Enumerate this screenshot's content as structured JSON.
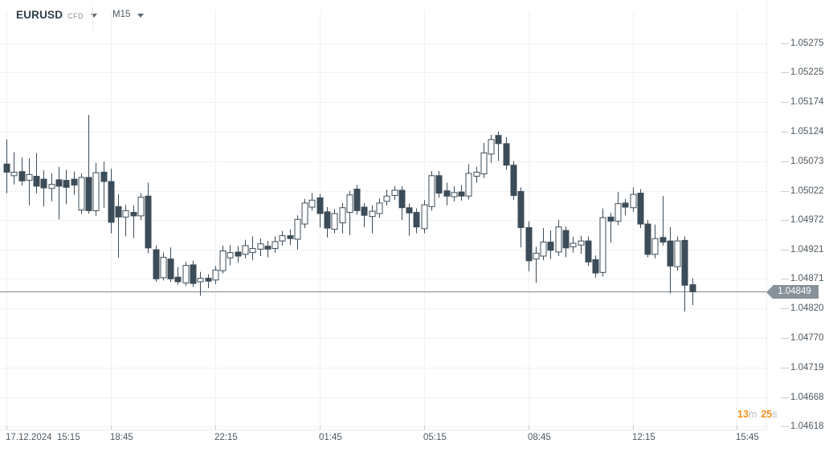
{
  "header": {
    "symbol": "EURUSD",
    "symbol_type": "CFD",
    "timeframe": "M15"
  },
  "price_scale": {
    "labels": [
      "1.05275",
      "1.05225",
      "1.05174",
      "1.05124",
      "1.05073",
      "1.05022",
      "1.04972",
      "1.04921",
      "1.04871",
      "1.04820",
      "1.04770",
      "1.04719",
      "1.04668",
      "1.04618"
    ],
    "current_price_label": "1.04849"
  },
  "time_scale": {
    "ticks": [
      {
        "label": "17.12.2024  15:15",
        "candle": 0
      },
      {
        "label": "18:45",
        "candle": 14
      },
      {
        "label": "22:15",
        "candle": 28
      },
      {
        "label": "01:45",
        "candle": 42
      },
      {
        "label": "05:15",
        "candle": 56
      },
      {
        "label": "08:45",
        "candle": 70
      },
      {
        "label": "12:15",
        "candle": 84
      },
      {
        "label": "15:45",
        "candle": 98
      }
    ]
  },
  "countdown": {
    "minutes_value": "13",
    "minutes_unit": "m",
    "seconds_value": "25",
    "seconds_unit": "s"
  },
  "colors": {
    "candle": "#3c4c59",
    "grid": "#eff1f3",
    "tick_dash": "#c7cdd1",
    "separator": "#e9eced",
    "price_line": "#7e8890",
    "badge_bg": "#87929a",
    "countdown_accent": "#f5931f"
  },
  "chart_data": {
    "type": "candlestick",
    "symbol": "EURUSD CFD",
    "interval": "M15",
    "start_time": "17.12.2024 15:15",
    "interval_minutes": 15,
    "current_price": 1.04849,
    "y_axis": {
      "ticks": [
        1.05275,
        1.05225,
        1.05174,
        1.05124,
        1.05073,
        1.05022,
        1.04972,
        1.04921,
        1.04871,
        1.0482,
        1.0477,
        1.04719,
        1.04668,
        1.04618
      ]
    },
    "candles": [
      [
        1.05068,
        1.0511,
        1.05018,
        1.05054
      ],
      [
        1.05048,
        1.05088,
        1.05033,
        1.05054
      ],
      [
        1.05055,
        1.05079,
        1.05031,
        1.05039
      ],
      [
        1.0504,
        1.05078,
        1.04997,
        1.0505
      ],
      [
        1.05047,
        1.05087,
        1.05018,
        1.0503
      ],
      [
        1.05042,
        1.05057,
        1.04995,
        1.05027
      ],
      [
        1.05026,
        1.05052,
        1.05004,
        1.05033
      ],
      [
        1.05041,
        1.05063,
        1.04973,
        1.0503
      ],
      [
        1.0504,
        1.05058,
        1.04999,
        1.05028
      ],
      [
        1.05042,
        1.05055,
        1.05015,
        1.05032
      ],
      [
        1.04989,
        1.05052,
        1.04982,
        1.05045
      ],
      [
        1.05045,
        1.05152,
        1.04983,
        1.04988
      ],
      [
        1.04988,
        1.0507,
        1.04979,
        1.05053
      ],
      [
        1.05054,
        1.05072,
        1.04993,
        1.05038
      ],
      [
        1.05038,
        1.0506,
        1.04949,
        1.04968
      ],
      [
        1.04995,
        1.05016,
        1.04907,
        1.04977
      ],
      [
        1.04977,
        1.04998,
        1.04944,
        1.04988
      ],
      [
        1.04985,
        1.04997,
        1.04941,
        1.04979
      ],
      [
        1.04979,
        1.05018,
        1.04972,
        1.05011
      ],
      [
        1.05013,
        1.05036,
        1.04915,
        1.04924
      ],
      [
        1.04921,
        1.04928,
        1.04866,
        1.04871
      ],
      [
        1.04873,
        1.04916,
        1.04868,
        1.04908
      ],
      [
        1.04905,
        1.04925,
        1.04866,
        1.04871
      ],
      [
        1.04874,
        1.04891,
        1.04861,
        1.04866
      ],
      [
        1.04864,
        1.049,
        1.04859,
        1.04894
      ],
      [
        1.04895,
        1.04902,
        1.04857,
        1.04863
      ],
      [
        1.04866,
        1.04883,
        1.04842,
        1.04872
      ],
      [
        1.04872,
        1.04879,
        1.04855,
        1.04867
      ],
      [
        1.04869,
        1.04893,
        1.04862,
        1.04886
      ],
      [
        1.04885,
        1.04928,
        1.0488,
        1.04919
      ],
      [
        1.04907,
        1.04929,
        1.04894,
        1.04916
      ],
      [
        1.04917,
        1.04927,
        1.04899,
        1.0491
      ],
      [
        1.04913,
        1.04938,
        1.04906,
        1.04928
      ],
      [
        1.04916,
        1.04944,
        1.04903,
        1.04923
      ],
      [
        1.04922,
        1.0494,
        1.0491,
        1.04931
      ],
      [
        1.04927,
        1.04936,
        1.04908,
        1.04922
      ],
      [
        1.04923,
        1.04944,
        1.04916,
        1.04935
      ],
      [
        1.04936,
        1.04953,
        1.04928,
        1.04945
      ],
      [
        1.04945,
        1.04956,
        1.04929,
        1.0494
      ],
      [
        1.04939,
        1.0498,
        1.04921,
        1.04973
      ],
      [
        1.04965,
        1.05008,
        1.04958,
        1.05001
      ],
      [
        1.04994,
        1.05018,
        1.04988,
        1.05006
      ],
      [
        1.0501,
        1.05017,
        1.04959,
        1.04983
      ],
      [
        1.04986,
        1.04994,
        1.04942,
        1.04958
      ],
      [
        1.04956,
        1.04991,
        1.04949,
        1.04983
      ],
      [
        1.04967,
        1.05001,
        1.04949,
        1.04993
      ],
      [
        1.04985,
        1.05022,
        1.04946,
        1.05015
      ],
      [
        1.05025,
        1.05032,
        1.04981,
        1.04988
      ],
      [
        1.04994,
        1.05001,
        1.0496,
        1.0498
      ],
      [
        1.04978,
        1.04997,
        1.04949,
        1.04987
      ],
      [
        1.04983,
        1.05009,
        1.04976,
        1.05001
      ],
      [
        1.05004,
        1.05024,
        1.04997,
        1.05013
      ],
      [
        1.05014,
        1.0503,
        1.05006,
        1.05023
      ],
      [
        1.05023,
        1.0503,
        1.04972,
        1.04993
      ],
      [
        1.04993,
        1.05,
        1.04945,
        1.04984
      ],
      [
        1.04985,
        1.04992,
        1.04949,
        1.0496
      ],
      [
        1.04957,
        1.05006,
        1.04949,
        1.04998
      ],
      [
        1.04995,
        1.05056,
        1.04988,
        1.05048
      ],
      [
        1.05048,
        1.05056,
        1.0501,
        1.05018
      ],
      [
        1.05022,
        1.05036,
        1.04997,
        1.05013
      ],
      [
        1.05012,
        1.0503,
        1.05004,
        1.05019
      ],
      [
        1.0502,
        1.05032,
        1.05005,
        1.05013
      ],
      [
        1.05013,
        1.05068,
        1.05007,
        1.05052
      ],
      [
        1.05047,
        1.05063,
        1.05036,
        1.05054
      ],
      [
        1.05051,
        1.05104,
        1.05044,
        1.05087
      ],
      [
        1.05085,
        1.05118,
        1.0507,
        1.0511
      ],
      [
        1.05117,
        1.05124,
        1.05073,
        1.05103
      ],
      [
        1.05103,
        1.05114,
        1.05058,
        1.05066
      ],
      [
        1.05066,
        1.05073,
        1.05006,
        1.05014
      ],
      [
        1.05021,
        1.05028,
        1.04925,
        1.04959
      ],
      [
        1.04959,
        1.0497,
        1.04884,
        1.04902
      ],
      [
        1.04905,
        1.04926,
        1.04864,
        1.04915
      ],
      [
        1.0491,
        1.04958,
        1.04903,
        1.04934
      ],
      [
        1.04934,
        1.04954,
        1.04905,
        1.0492
      ],
      [
        1.04917,
        1.04972,
        1.0491,
        1.0496
      ],
      [
        1.04954,
        1.04961,
        1.04908,
        1.04924
      ],
      [
        1.04926,
        1.04943,
        1.04916,
        1.04932
      ],
      [
        1.04929,
        1.04945,
        1.04914,
        1.04936
      ],
      [
        1.04936,
        1.04944,
        1.04893,
        1.049
      ],
      [
        1.04904,
        1.04911,
        1.04873,
        1.04881
      ],
      [
        1.04882,
        1.04992,
        1.04875,
        1.04976
      ],
      [
        1.04977,
        1.04984,
        1.04933,
        1.0497
      ],
      [
        1.0497,
        1.0502,
        1.04963,
        1.05
      ],
      [
        1.05001,
        1.05008,
        1.0498,
        1.04994
      ],
      [
        1.04993,
        1.05028,
        1.04986,
        1.05016
      ],
      [
        1.05018,
        1.05025,
        1.04958,
        1.04965
      ],
      [
        1.04965,
        1.04972,
        1.04908,
        1.04913
      ],
      [
        1.04913,
        1.04964,
        1.04906,
        1.0494
      ],
      [
        1.04942,
        1.05013,
        1.04928,
        1.04934
      ],
      [
        1.04936,
        1.0496,
        1.04846,
        1.04893
      ],
      [
        1.04892,
        1.04944,
        1.04885,
        1.04936
      ],
      [
        1.04937,
        1.04944,
        1.04815,
        1.0486
      ],
      [
        1.04861,
        1.04872,
        1.04826,
        1.04849
      ]
    ]
  }
}
